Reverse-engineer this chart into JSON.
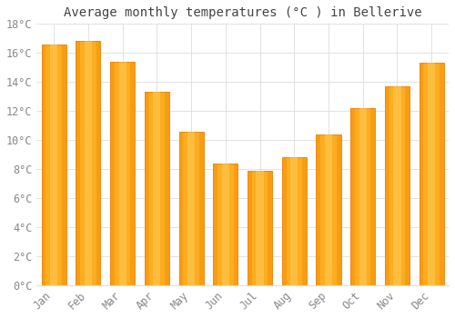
{
  "title": "Average monthly temperatures (°C ) in Bellerive",
  "months": [
    "Jan",
    "Feb",
    "Mar",
    "Apr",
    "May",
    "Jun",
    "Jul",
    "Aug",
    "Sep",
    "Oct",
    "Nov",
    "Dec"
  ],
  "values": [
    16.6,
    16.8,
    15.4,
    13.3,
    10.6,
    8.4,
    7.9,
    8.8,
    10.4,
    12.2,
    13.7,
    15.3
  ],
  "bar_color_main": "#FCAD20",
  "bar_color_light": "#FFD060",
  "bar_color_dark": "#F08000",
  "background_color": "#FFFFFF",
  "grid_color": "#DDDDDD",
  "ylim": [
    0,
    18
  ],
  "ytick_step": 2,
  "title_fontsize": 10,
  "tick_fontsize": 8.5,
  "tick_color": "#888888",
  "title_color": "#444444",
  "font_family": "monospace",
  "bar_width": 0.72
}
